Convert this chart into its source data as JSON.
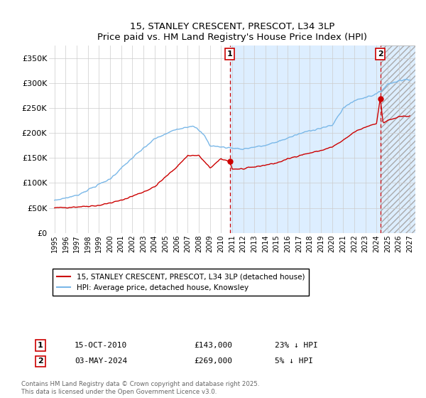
{
  "title1": "15, STANLEY CRESCENT, PRESCOT, L34 3LP",
  "title2": "Price paid vs. HM Land Registry's House Price Index (HPI)",
  "legend_line1": "15, STANLEY CRESCENT, PRESCOT, L34 3LP (detached house)",
  "legend_line2": "HPI: Average price, detached house, Knowsley",
  "annotation1_label": "1",
  "annotation1_date": "15-OCT-2010",
  "annotation1_price": "£143,000",
  "annotation1_hpi": "23% ↓ HPI",
  "annotation2_label": "2",
  "annotation2_date": "03-MAY-2024",
  "annotation2_price": "£269,000",
  "annotation2_hpi": "5% ↓ HPI",
  "sale1_x": 2010.79,
  "sale1_y": 143000,
  "sale2_x": 2024.34,
  "sale2_y": 269000,
  "vline1_x": 2010.79,
  "vline2_x": 2024.34,
  "hpi_color": "#7ab8e8",
  "sale_color": "#cc0000",
  "vline_color": "#cc0000",
  "fill_color": "#ddeeff",
  "hatch_color": "#aaaaaa",
  "background_color": "#ffffff",
  "grid_color": "#cccccc",
  "ylim": [
    0,
    375000
  ],
  "xlim": [
    1994.5,
    2027.5
  ],
  "yticks": [
    0,
    50000,
    100000,
    150000,
    200000,
    250000,
    300000,
    350000
  ],
  "ytick_labels": [
    "£0",
    "£50K",
    "£100K",
    "£150K",
    "£200K",
    "£250K",
    "£300K",
    "£350K"
  ],
  "xticks": [
    1995,
    1996,
    1997,
    1998,
    1999,
    2000,
    2001,
    2002,
    2003,
    2004,
    2005,
    2006,
    2007,
    2008,
    2009,
    2010,
    2011,
    2012,
    2013,
    2014,
    2015,
    2016,
    2017,
    2018,
    2019,
    2020,
    2021,
    2022,
    2023,
    2024,
    2025,
    2026,
    2027
  ],
  "footer": "Contains HM Land Registry data © Crown copyright and database right 2025.\nThis data is licensed under the Open Government Licence v3.0.",
  "hatch_start": 2024.34
}
